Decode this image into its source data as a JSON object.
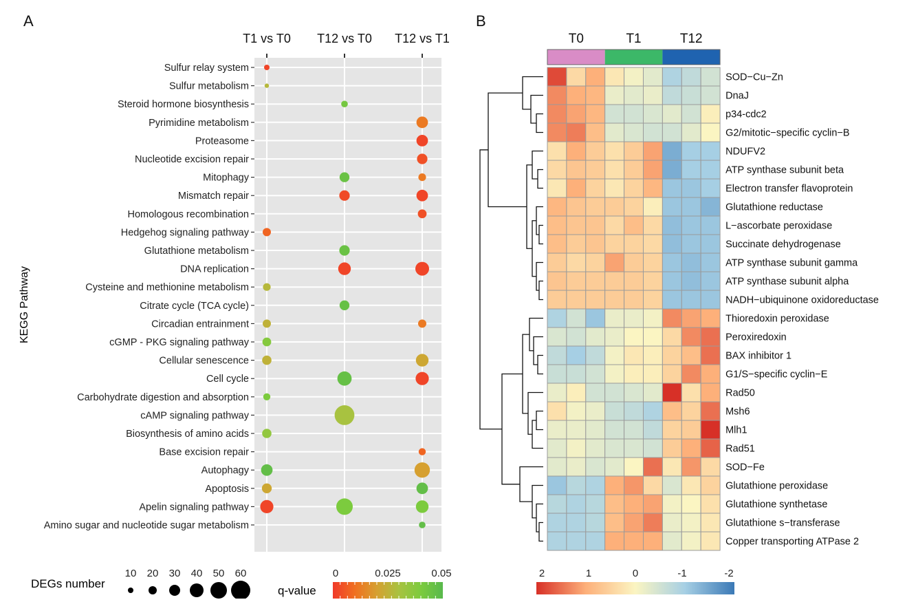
{
  "panel_a": {
    "panel_label": "A",
    "colors": {
      "panel_bg": "#e5e5e5",
      "grid": "#ffffff"
    },
    "chart_data": {
      "type": "scatter",
      "subtype": "bubble",
      "x_categories": [
        "T1 vs T0",
        "T12 vs T0",
        "T12 vs T1"
      ],
      "y_categories": [
        "Sulfur relay system",
        "Sulfur metabolism",
        "Steroid hormone biosynthesis",
        "Pyrimidine metabolism",
        "Proteasome",
        "Nucleotide excision repair",
        "Mitophagy",
        "Mismatch repair",
        "Homologous recombination",
        "Hedgehog signaling pathway",
        "Glutathione metabolism",
        "DNA replication",
        "Cysteine and methionine metabolism",
        "Citrate cycle (TCA cycle)",
        "Circadian entrainment",
        "cGMP - PKG signaling pathway",
        "Cellular senescence",
        "Cell cycle",
        "Carbohydrate digestion and absorption",
        "cAMP signaling pathway",
        "Biosynthesis of amino acids",
        "Base excision repair",
        "Autophagy",
        "Apoptosis",
        "Apelin signaling pathway",
        "Amino sugar and nucleotide sugar metabolism"
      ],
      "ylabel": "KEGG Pathway",
      "points": [
        {
          "x": "T1 vs T0",
          "y": "Sulfur relay system",
          "size": 10,
          "q": 0.002
        },
        {
          "x": "T1 vs T0",
          "y": "Sulfur metabolism",
          "size": 6,
          "q": 0.027
        },
        {
          "x": "T1 vs T0",
          "y": "Hedgehog signaling pathway",
          "size": 20,
          "q": 0.008
        },
        {
          "x": "T1 vs T0",
          "y": "Cysteine and methionine metabolism",
          "size": 18,
          "q": 0.027
        },
        {
          "x": "T1 vs T0",
          "y": "Circadian entrainment",
          "size": 20,
          "q": 0.025
        },
        {
          "x": "T1 vs T0",
          "y": "cGMP - PKG signaling pathway",
          "size": 22,
          "q": 0.038
        },
        {
          "x": "T1 vs T0",
          "y": "Cellular senescence",
          "size": 24,
          "q": 0.025
        },
        {
          "x": "T1 vs T0",
          "y": "Carbohydrate digestion and absorption",
          "size": 16,
          "q": 0.04
        },
        {
          "x": "T1 vs T0",
          "y": "Biosynthesis of amino acids",
          "size": 24,
          "q": 0.035
        },
        {
          "x": "T1 vs T0",
          "y": "Autophagy",
          "size": 32,
          "q": 0.047
        },
        {
          "x": "T1 vs T0",
          "y": "Apoptosis",
          "size": 26,
          "q": 0.022
        },
        {
          "x": "T1 vs T0",
          "y": "Apelin signaling pathway",
          "size": 38,
          "q": 0.002
        },
        {
          "x": "T12 vs T0",
          "y": "Steroid hormone biosynthesis",
          "size": 14,
          "q": 0.042
        },
        {
          "x": "T12 vs T0",
          "y": "Mitophagy",
          "size": 26,
          "q": 0.045
        },
        {
          "x": "T12 vs T0",
          "y": "Mismatch repair",
          "size": 28,
          "q": 0.003
        },
        {
          "x": "T12 vs T0",
          "y": "Glutathione metabolism",
          "size": 28,
          "q": 0.045
        },
        {
          "x": "T12 vs T0",
          "y": "DNA replication",
          "size": 36,
          "q": 0.002
        },
        {
          "x": "T12 vs T0",
          "y": "Citrate cycle (TCA cycle)",
          "size": 26,
          "q": 0.046
        },
        {
          "x": "T12 vs T0",
          "y": "Cell cycle",
          "size": 42,
          "q": 0.046
        },
        {
          "x": "T12 vs T0",
          "y": "cAMP signaling pathway",
          "size": 62,
          "q": 0.03
        },
        {
          "x": "T12 vs T0",
          "y": "Apelin signaling pathway",
          "size": 50,
          "q": 0.04
        },
        {
          "x": "T12 vs T1",
          "y": "Pyrimidine metabolism",
          "size": 32,
          "q": 0.012
        },
        {
          "x": "T12 vs T1",
          "y": "Proteasome",
          "size": 32,
          "q": 0.002
        },
        {
          "x": "T12 vs T1",
          "y": "Nucleotide excision repair",
          "size": 28,
          "q": 0.004
        },
        {
          "x": "T12 vs T1",
          "y": "Mitophagy",
          "size": 18,
          "q": 0.012
        },
        {
          "x": "T12 vs T1",
          "y": "Mismatch repair",
          "size": 32,
          "q": 0.002
        },
        {
          "x": "T12 vs T1",
          "y": "Homologous recombination",
          "size": 22,
          "q": 0.004
        },
        {
          "x": "T12 vs T1",
          "y": "DNA replication",
          "size": 40,
          "q": 0.002
        },
        {
          "x": "T12 vs T1",
          "y": "Circadian entrainment",
          "size": 20,
          "q": 0.012
        },
        {
          "x": "T12 vs T1",
          "y": "Cellular senescence",
          "size": 36,
          "q": 0.022
        },
        {
          "x": "T12 vs T1",
          "y": "Cell cycle",
          "size": 38,
          "q": 0.002
        },
        {
          "x": "T12 vs T1",
          "y": "Base excision repair",
          "size": 16,
          "q": 0.008
        },
        {
          "x": "T12 vs T1",
          "y": "Autophagy",
          "size": 46,
          "q": 0.02
        },
        {
          "x": "T12 vs T1",
          "y": "Apoptosis",
          "size": 32,
          "q": 0.047
        },
        {
          "x": "T12 vs T1",
          "y": "Apelin signaling pathway",
          "size": 36,
          "q": 0.04
        },
        {
          "x": "T12 vs T1",
          "y": "Amino sugar and nucleotide sugar metabolism",
          "size": 14,
          "q": 0.047
        }
      ],
      "size_legend": {
        "title": "DEGs number",
        "values": [
          10,
          20,
          30,
          40,
          50,
          60
        ]
      },
      "color_legend": {
        "title": "q-value",
        "range": [
          0,
          0.05
        ],
        "tick_values": [
          0,
          0.025,
          0.05
        ],
        "tick_labels": [
          "0",
          "0.025",
          "0.05"
        ],
        "color_stops": [
          "#f03a2a",
          "#f07020",
          "#d6a030",
          "#a8c240",
          "#7ccb3e",
          "#58b94c"
        ]
      },
      "grid": true
    }
  },
  "panel_b": {
    "panel_label": "B",
    "chart_data": {
      "type": "heatmap",
      "groups": [
        {
          "label": "T0",
          "color": "#d98cc6"
        },
        {
          "label": "T1",
          "color": "#3cb868"
        },
        {
          "label": "T12",
          "color": "#1f63b0"
        }
      ],
      "columns_per_group": 3,
      "rows": [
        "SOD−Cu−Zn",
        "DnaJ",
        "p34-cdc2",
        "G2/mitotic−specific cyclin−B",
        "NDUFV2",
        "ATP synthase subunit beta",
        "Electron transfer flavoprotein",
        "Glutathione reductase",
        "L−ascorbate peroxidase",
        "Succinate dehydrogenase",
        "ATP synthase subunit gamma",
        "ATP synthase subunit alpha",
        "NADH−ubiquinone oxidoreductase",
        "Thioredoxin peroxidase",
        "Peroxiredoxin",
        "BAX inhibitor 1",
        "G1/S−specific cyclin−E",
        "Rad50",
        "Msh6",
        "Mlh1",
        "Rad51",
        "SOD−Fe",
        "Glutathione peroxidase",
        "Glutathione synthetase",
        "Glutathione s−transferase",
        "Copper transporting ATPase 2"
      ],
      "values": [
        [
          1.8,
          0.4,
          1.0,
          0.2,
          -0.1,
          -0.3,
          -0.9,
          -0.7,
          -0.5
        ],
        [
          1.3,
          1.0,
          0.9,
          -0.2,
          -0.3,
          -0.2,
          -0.7,
          -0.6,
          -0.5
        ],
        [
          1.3,
          1.1,
          0.9,
          -0.5,
          -0.5,
          -0.4,
          -0.3,
          -0.5,
          0.1
        ],
        [
          1.3,
          1.4,
          0.8,
          -0.3,
          -0.4,
          -0.5,
          -0.5,
          -0.3,
          0.0
        ],
        [
          0.3,
          1.0,
          0.6,
          0.3,
          0.6,
          1.1,
          -1.4,
          -1.0,
          -1.0
        ],
        [
          0.4,
          0.7,
          0.6,
          0.3,
          0.6,
          1.1,
          -1.4,
          -1.0,
          -1.0
        ],
        [
          0.2,
          1.0,
          0.5,
          0.2,
          0.5,
          0.9,
          -1.1,
          -1.1,
          -1.0
        ],
        [
          0.9,
          0.7,
          0.6,
          0.6,
          0.5,
          0.1,
          -1.1,
          -1.1,
          -1.3
        ],
        [
          0.8,
          0.7,
          0.7,
          0.4,
          0.8,
          0.4,
          -1.2,
          -1.1,
          -1.1
        ],
        [
          0.8,
          0.6,
          0.7,
          0.5,
          0.5,
          0.4,
          -1.2,
          -1.1,
          -1.1
        ],
        [
          0.6,
          0.4,
          0.5,
          1.1,
          0.6,
          0.5,
          -1.1,
          -1.2,
          -1.1
        ],
        [
          0.7,
          0.6,
          0.6,
          0.6,
          0.6,
          0.5,
          -1.1,
          -1.2,
          -1.1
        ],
        [
          0.6,
          0.6,
          0.6,
          0.6,
          0.6,
          0.5,
          -1.1,
          -1.1,
          -1.1
        ],
        [
          -0.9,
          -0.5,
          -1.1,
          -0.2,
          -0.2,
          -0.1,
          1.3,
          1.1,
          1.0
        ],
        [
          -0.4,
          -0.5,
          -0.3,
          -0.2,
          0.0,
          0.0,
          0.4,
          1.3,
          1.5
        ],
        [
          -0.7,
          -1.0,
          -0.7,
          -0.1,
          0.2,
          0.1,
          0.5,
          0.8,
          1.5
        ],
        [
          -0.6,
          -0.6,
          -0.5,
          -0.1,
          0.1,
          0.1,
          0.5,
          1.3,
          1.0
        ],
        [
          -0.2,
          0.1,
          -0.5,
          -0.5,
          -0.4,
          -0.3,
          2.0,
          0.3,
          1.0
        ],
        [
          0.3,
          -0.1,
          -0.2,
          -0.6,
          -0.7,
          -0.9,
          0.8,
          0.5,
          1.5
        ],
        [
          -0.2,
          -0.2,
          -0.3,
          -0.5,
          -0.5,
          -0.7,
          0.5,
          0.6,
          2.0
        ],
        [
          -0.3,
          -0.1,
          -0.3,
          -0.4,
          -0.4,
          -0.5,
          0.6,
          1.0,
          1.6
        ],
        [
          -0.3,
          -0.2,
          -0.4,
          -0.3,
          0.0,
          1.5,
          0.2,
          1.2,
          0.4
        ],
        [
          -1.1,
          -0.8,
          -0.9,
          1.0,
          1.2,
          0.4,
          -0.4,
          0.2,
          0.5
        ],
        [
          -0.8,
          -0.9,
          -0.8,
          0.8,
          1.0,
          1.1,
          -0.1,
          0.0,
          0.3
        ],
        [
          -0.9,
          -0.9,
          -0.8,
          0.8,
          1.1,
          1.4,
          -0.2,
          -0.1,
          0.2
        ],
        [
          -0.9,
          -0.9,
          -0.9,
          1.0,
          1.0,
          1.0,
          -0.3,
          -0.1,
          0.2
        ]
      ],
      "color_scale": {
        "domain": [
          2,
          1,
          0,
          -1,
          -2
        ],
        "tick_labels": [
          "2",
          "1",
          "0",
          "-1",
          "-2"
        ],
        "colors": [
          "#d73027",
          "#fdb07a",
          "#fbf5c2",
          "#a6cfe4",
          "#3b79b6"
        ]
      },
      "row_dendrogram": true,
      "cell_border_color": "#9a9a9a"
    }
  }
}
